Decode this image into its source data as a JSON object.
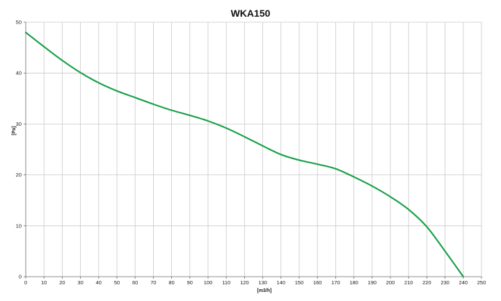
{
  "chart_data": {
    "type": "line",
    "title": "WKA150",
    "xlabel": "[m3/h]",
    "ylabel": "[Pa]",
    "xlim": [
      0,
      250
    ],
    "ylim": [
      0,
      50
    ],
    "x_ticks": [
      0,
      10,
      20,
      30,
      40,
      50,
      60,
      70,
      80,
      90,
      100,
      110,
      120,
      130,
      140,
      150,
      160,
      170,
      180,
      190,
      200,
      210,
      220,
      230,
      240,
      250
    ],
    "y_ticks": [
      0,
      10,
      20,
      30,
      40,
      50
    ],
    "grid": true,
    "legend": "none",
    "series": [
      {
        "color": "#1aa14a",
        "x": [
          0,
          10,
          20,
          30,
          40,
          50,
          60,
          70,
          80,
          90,
          100,
          110,
          120,
          130,
          140,
          150,
          160,
          170,
          180,
          190,
          200,
          210,
          220,
          230,
          240
        ],
        "y": [
          48,
          45.2,
          42.5,
          40.1,
          38.1,
          36.5,
          35.2,
          33.9,
          32.7,
          31.7,
          30.6,
          29.2,
          27.5,
          25.7,
          24.0,
          22.9,
          22.1,
          21.2,
          19.6,
          17.8,
          15.7,
          13.2,
          9.8,
          5.0,
          0
        ]
      }
    ]
  }
}
